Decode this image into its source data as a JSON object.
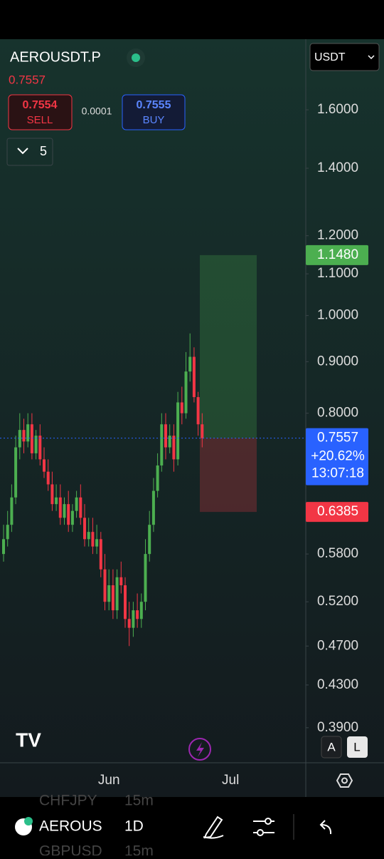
{
  "header": {
    "symbol": "AEROUSDT.P",
    "last": "0.7557",
    "sell_price": "0.7554",
    "sell": "SELL",
    "spread": "0.0001",
    "buy_price": "0.7555",
    "buy": "BUY",
    "count": "5",
    "currency": "USDT"
  },
  "chart_data": {
    "type": "candlestick",
    "log_scale": true,
    "up_color": "#4caf50",
    "down_color": "#f23645",
    "categories": [
      null,
      null,
      null,
      null,
      null,
      null,
      null,
      null,
      null,
      null,
      null,
      null,
      null,
      null,
      null,
      null,
      null,
      null,
      null,
      null,
      null,
      null,
      null,
      null,
      null,
      null,
      "Jun",
      null,
      null,
      null,
      null,
      null,
      null,
      null,
      null,
      null,
      null,
      null,
      null,
      null,
      null,
      null,
      null,
      null,
      null,
      null,
      null,
      null,
      null,
      null,
      null,
      null,
      null,
      null,
      null,
      null,
      "Jul",
      null,
      null,
      null
    ],
    "open": [
      0.58,
      0.6,
      0.62,
      0.66,
      0.74,
      0.77,
      0.75,
      0.78,
      0.73,
      0.76,
      0.72,
      0.7,
      0.68,
      0.65,
      0.66,
      0.63,
      0.65,
      0.62,
      0.64,
      0.66,
      0.63,
      0.6,
      0.61,
      0.59,
      0.6,
      0.56,
      0.52,
      0.54,
      0.51,
      0.55,
      0.54,
      0.5,
      0.49,
      0.51,
      0.5,
      0.52,
      0.58,
      0.62,
      0.67,
      0.71,
      0.78,
      0.74,
      0.76,
      0.72,
      0.82,
      0.8,
      0.88,
      0.91,
      0.83,
      0.78,
      null,
      null,
      null,
      null,
      null,
      null,
      null,
      null,
      null,
      null
    ],
    "high": [
      0.62,
      0.64,
      0.68,
      0.76,
      0.8,
      0.79,
      0.8,
      0.8,
      0.77,
      0.78,
      0.74,
      0.72,
      0.7,
      0.68,
      0.68,
      0.66,
      0.67,
      0.65,
      0.67,
      0.68,
      0.65,
      0.63,
      0.63,
      0.62,
      0.61,
      0.58,
      0.56,
      0.56,
      0.56,
      0.57,
      0.55,
      0.52,
      0.52,
      0.53,
      0.53,
      0.6,
      0.64,
      0.69,
      0.73,
      0.8,
      0.8,
      0.78,
      0.78,
      0.84,
      0.85,
      0.92,
      0.96,
      0.93,
      0.84,
      0.8,
      null,
      null,
      null,
      null,
      null,
      null,
      null,
      null,
      null,
      null
    ],
    "low": [
      0.57,
      0.59,
      0.61,
      0.65,
      0.72,
      0.73,
      0.74,
      0.72,
      0.72,
      0.71,
      0.69,
      0.67,
      0.64,
      0.64,
      0.62,
      0.62,
      0.61,
      0.61,
      0.63,
      0.62,
      0.59,
      0.59,
      0.58,
      0.58,
      0.55,
      0.51,
      0.51,
      0.5,
      0.5,
      0.53,
      0.49,
      0.47,
      0.48,
      0.49,
      0.49,
      0.51,
      0.57,
      0.61,
      0.66,
      0.7,
      0.72,
      0.73,
      0.7,
      0.71,
      0.78,
      0.79,
      0.86,
      0.82,
      0.76,
      0.74,
      null,
      null,
      null,
      null,
      null,
      null,
      null,
      null,
      null,
      null
    ],
    "close": [
      0.6,
      0.62,
      0.66,
      0.74,
      0.77,
      0.75,
      0.78,
      0.73,
      0.76,
      0.72,
      0.7,
      0.68,
      0.65,
      0.66,
      0.63,
      0.65,
      0.62,
      0.64,
      0.66,
      0.63,
      0.6,
      0.61,
      0.59,
      0.6,
      0.56,
      0.52,
      0.54,
      0.51,
      0.55,
      0.54,
      0.5,
      0.49,
      0.51,
      0.5,
      0.52,
      0.58,
      0.62,
      0.67,
      0.71,
      0.78,
      0.74,
      0.76,
      0.72,
      0.82,
      0.8,
      0.88,
      0.91,
      0.83,
      0.78,
      0.7557,
      null,
      null,
      null,
      null,
      null,
      null,
      null,
      null,
      null,
      null
    ],
    "ylim": [
      0.36,
      1.88
    ],
    "yticks": [
      {
        "value": 1.6,
        "label": "1.6000"
      },
      {
        "value": 1.4,
        "label": "1.4000"
      },
      {
        "value": 1.2,
        "label": "1.2000"
      },
      {
        "value": 1.1,
        "label": "1.1000"
      },
      {
        "value": 1,
        "label": "1.0000"
      },
      {
        "value": 0.9,
        "label": "0.9000"
      },
      {
        "value": 0.8,
        "label": "0.8000"
      },
      {
        "value": 0.58,
        "label": "0.5800"
      },
      {
        "value": 0.52,
        "label": "0.5200"
      },
      {
        "value": 0.47,
        "label": "0.4700"
      },
      {
        "value": 0.43,
        "label": "0.4300"
      },
      {
        "value": 0.39,
        "label": "0.3900"
      }
    ],
    "target": {
      "value": 1.148,
      "label": "1.1480",
      "color": "#4caf50"
    },
    "stop": {
      "value": 0.6385,
      "label": "0.6385",
      "color": "#f23645"
    },
    "last": {
      "value": 0.7557,
      "label": "0.7557",
      "change": "+20.62%",
      "countdown": "13:07:18",
      "color": "#2962ff"
    }
  },
  "controls": {
    "auto": "A",
    "log": "L"
  },
  "toolbar": {
    "symbol": "AEROUS",
    "interval": "1D",
    "ghost1": "CHFJPY",
    "ghost1_tf": "15m",
    "ghost2": "GBPUSD",
    "ghost2_tf": "15m"
  }
}
